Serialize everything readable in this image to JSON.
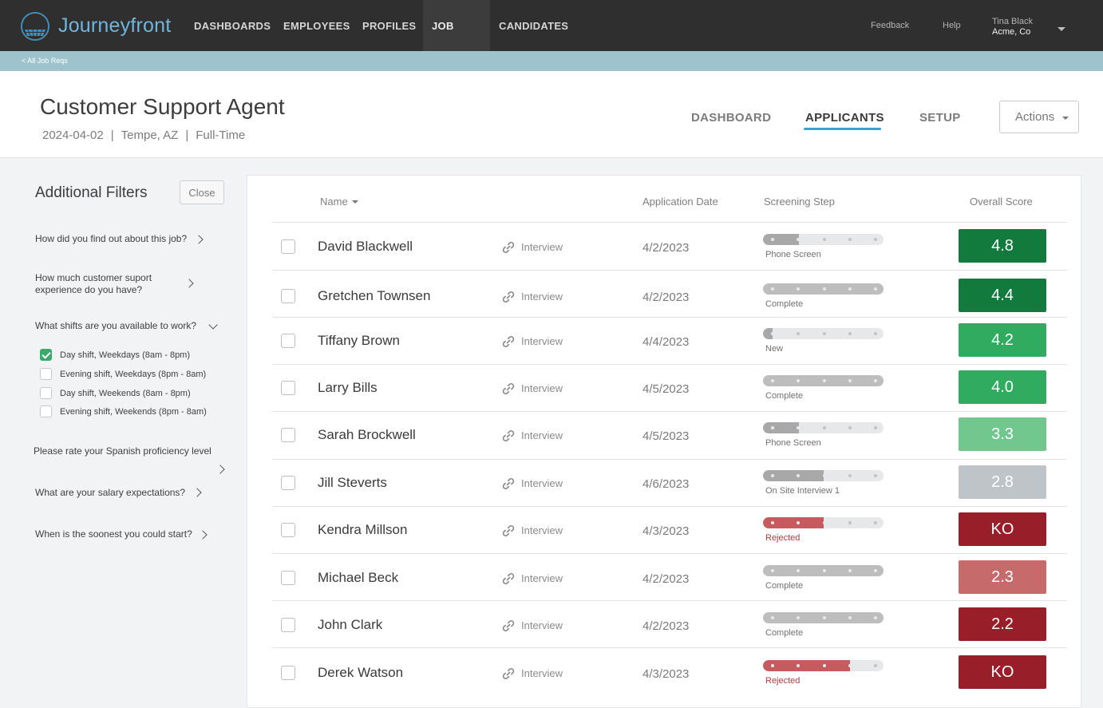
{
  "brand": {
    "name": "Journeyfront"
  },
  "nav": {
    "items": [
      "DASHBOARDS",
      "EMPLOYEES",
      "PROFILES",
      "JOB REQS",
      "CANDIDATES"
    ],
    "active": "JOB REQS",
    "feedback": "Feedback",
    "help": "Help",
    "user_name": "Tina Black",
    "user_org": "Acme, Co"
  },
  "breadcrumb": {
    "back_label": "< All Job Reqs"
  },
  "job": {
    "title": "Customer Support Agent",
    "date": "2024-04-02",
    "location": "Tempe, AZ",
    "type": "Full-Time",
    "sep": "|"
  },
  "tabs": {
    "dashboard": "DASHBOARD",
    "applicants": "APPLICANTS",
    "setup": "SETUP",
    "active": "APPLICANTS"
  },
  "actions_label": "Actions",
  "filters": {
    "title": "Additional Filters",
    "close_label": "Close",
    "q1": "How did you find out about this job?",
    "q2_line1": "How much customer suport",
    "q2_line2": "experience do you have?",
    "q3": "What shifts are you available to work?",
    "options": [
      {
        "label": "Day shift, Weekdays (8am - 8pm)",
        "checked": true
      },
      {
        "label": "Evening shift, Weekdays (8pm - 8am)",
        "checked": false
      },
      {
        "label": "Day shift, Weekends (8am - 8pm)",
        "checked": false
      },
      {
        "label": "Evening shift, Weekends (8pm - 8am)",
        "checked": false
      }
    ],
    "q4": "Please rate your Spanish proficiency level",
    "q5": "What are your salary expectations?",
    "q6": "When is the soonest you could start?"
  },
  "table": {
    "col_name": "Name",
    "col_date": "Application Date",
    "col_step": "Screening Step",
    "col_score": "Overall Score",
    "stage_label": "Interview",
    "rows": [
      {
        "name": "David Blackwell",
        "date": "4/2/2023",
        "step": "Phone Screen",
        "progress": 0.3,
        "status": "active",
        "score": "4.8",
        "score_color": "#137a3e"
      },
      {
        "name": "Gretchen Townsen",
        "date": "4/2/2023",
        "step": "Complete",
        "progress": 1.0,
        "status": "complete",
        "score": "4.4",
        "score_color": "#137a3e"
      },
      {
        "name": "Tiffany Brown",
        "date": "4/4/2023",
        "step": "New",
        "progress": 0.08,
        "status": "active",
        "score": "4.2",
        "score_color": "#31ab5f"
      },
      {
        "name": "Larry Bills",
        "date": "4/5/2023",
        "step": "Complete",
        "progress": 1.0,
        "status": "complete",
        "score": "4.0",
        "score_color": "#31ab5f"
      },
      {
        "name": "Sarah Brockwell",
        "date": "4/5/2023",
        "step": "Phone Screen",
        "progress": 0.3,
        "status": "active",
        "score": "3.3",
        "score_color": "#72c78f"
      },
      {
        "name": "Jill Steverts",
        "date": "4/6/2023",
        "step": "On Site Interview 1",
        "progress": 0.5,
        "status": "active",
        "score": "2.8",
        "score_color": "#bfc4c9"
      },
      {
        "name": "Kendra Millson",
        "date": "4/3/2023",
        "step": "Rejected",
        "progress": 0.5,
        "status": "rejected",
        "score": "KO",
        "score_color": "#981f2a"
      },
      {
        "name": "Michael Beck",
        "date": "4/2/2023",
        "step": "Complete",
        "progress": 1.0,
        "status": "complete",
        "score": "2.3",
        "score_color": "#c66a6c"
      },
      {
        "name": "John Clark",
        "date": "4/2/2023",
        "step": "Complete",
        "progress": 1.0,
        "status": "complete",
        "score": "2.2",
        "score_color": "#981f2a"
      },
      {
        "name": "Derek Watson",
        "date": "4/3/2023",
        "step": "Rejected",
        "progress": 0.72,
        "status": "rejected",
        "score": "KO",
        "score_color": "#981f2a"
      }
    ]
  },
  "colors": {
    "nav_bg": "#2f2f2f",
    "accent": "#3aa0d3",
    "progress_active": "#a8a8a8",
    "progress_complete": "#bdbdbd",
    "progress_rejected": "#c65a5e",
    "checkbox_checked": "#3aaa6a"
  }
}
